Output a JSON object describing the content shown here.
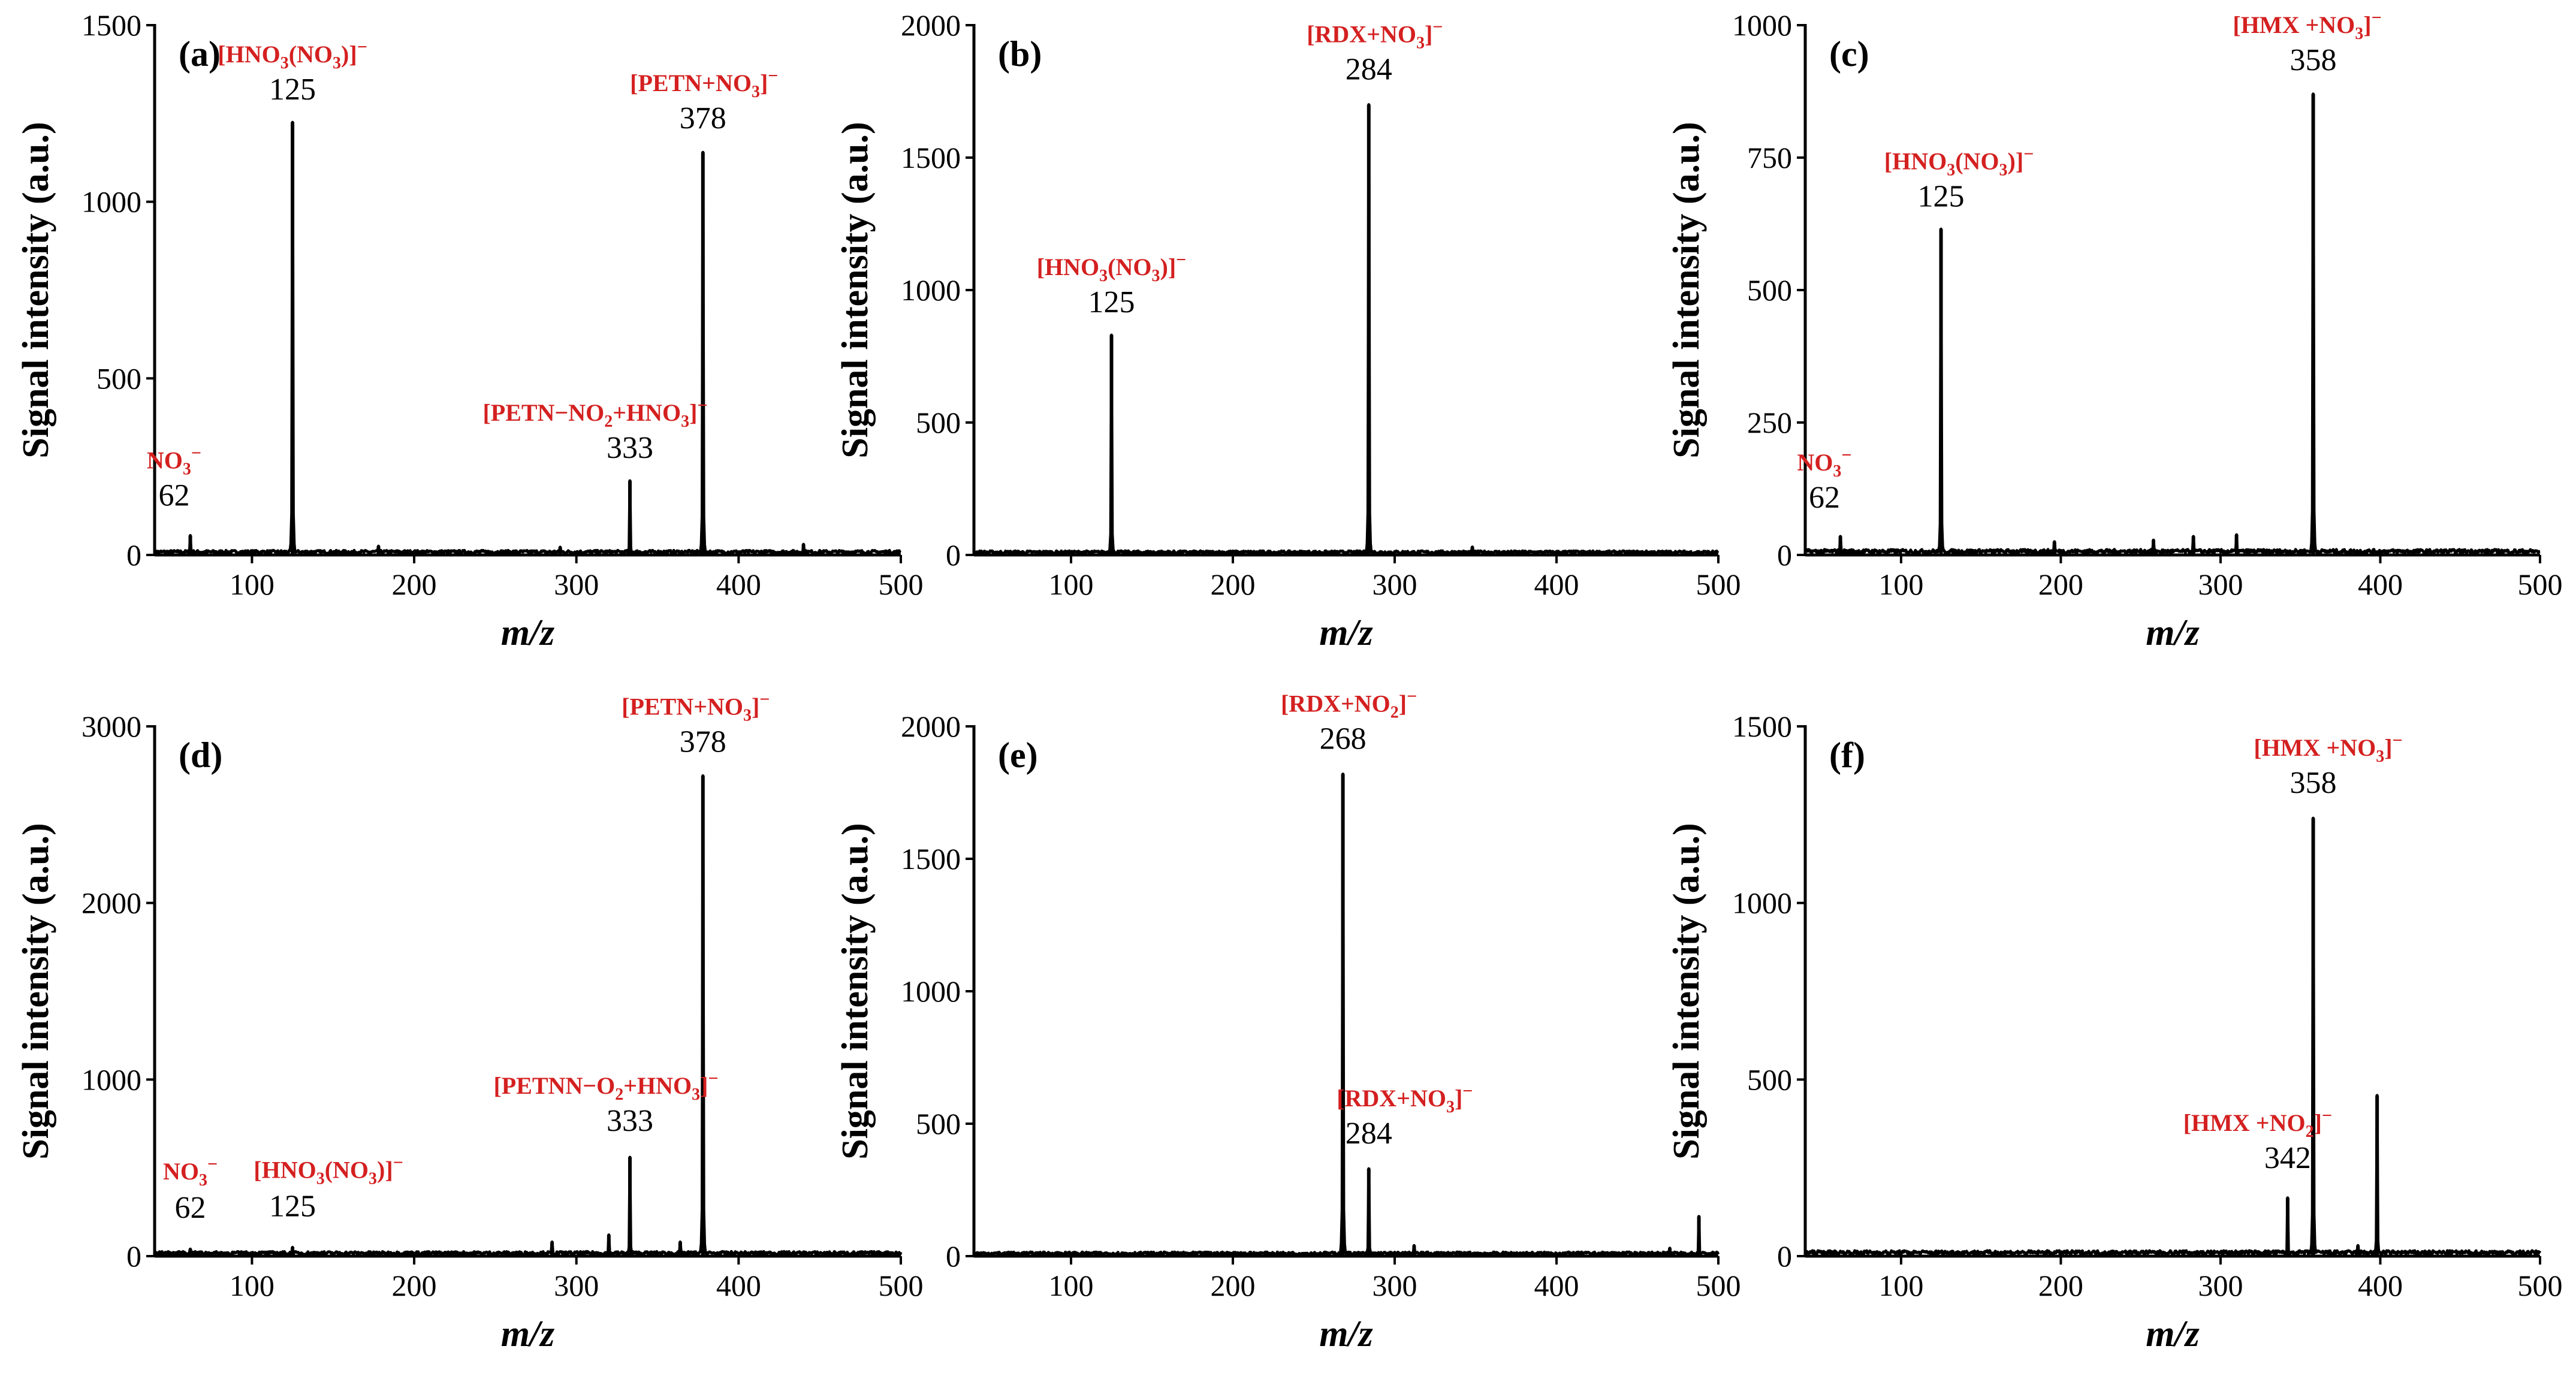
{
  "colors": {
    "annotation": "#d42020",
    "line": "#000000"
  },
  "chart_data": [
    {
      "type": "line",
      "panel": "(a)",
      "xlabel": "m/z",
      "ylabel": "Signal intensity (a.u.)",
      "xlim": [
        40,
        500
      ],
      "ylim": [
        0,
        1500
      ],
      "xticks": [
        100,
        200,
        300,
        400,
        500
      ],
      "yticks": [
        0,
        500,
        1000,
        1500
      ],
      "baseline": 10,
      "peaks": [
        {
          "x": 62,
          "y": 55
        },
        {
          "x": 125,
          "y": 1225
        },
        {
          "x": 178,
          "y": 25
        },
        {
          "x": 290,
          "y": 22
        },
        {
          "x": 333,
          "y": 210
        },
        {
          "x": 378,
          "y": 1140
        },
        {
          "x": 440,
          "y": 30
        }
      ],
      "annotations": [
        {
          "mz": "62",
          "ion": [
            [
              "NO"
            ],
            [
              "3",
              "sub"
            ],
            [
              "−",
              "sup"
            ]
          ]
        },
        {
          "mz": "125",
          "ion": [
            [
              "[HNO"
            ],
            [
              "3",
              "sub"
            ],
            [
              "(NO"
            ],
            [
              "3",
              "sub"
            ],
            [
              ")]"
            ],
            [
              "−",
              "sup"
            ]
          ]
        },
        {
          "mz": "333",
          "ion": [
            [
              "[PETN−NO"
            ],
            [
              "2",
              "sub"
            ],
            [
              "+HNO"
            ],
            [
              "3",
              "sub"
            ],
            [
              "]"
            ],
            [
              "−",
              "sup"
            ]
          ]
        },
        {
          "mz": "378",
          "ion": [
            [
              "[PETN+NO"
            ],
            [
              "3",
              "sub"
            ],
            [
              "]"
            ],
            [
              "−",
              "sup"
            ]
          ]
        }
      ]
    },
    {
      "type": "line",
      "panel": "(b)",
      "xlabel": "m/z",
      "ylabel": "Signal intensity (a.u.)",
      "xlim": [
        40,
        500
      ],
      "ylim": [
        0,
        2000
      ],
      "xticks": [
        100,
        200,
        300,
        400,
        500
      ],
      "yticks": [
        0,
        500,
        1000,
        1500,
        2000
      ],
      "baseline": 12,
      "peaks": [
        {
          "x": 125,
          "y": 830
        },
        {
          "x": 284,
          "y": 1700
        },
        {
          "x": 348,
          "y": 30
        }
      ],
      "annotations": [
        {
          "mz": "125",
          "ion": [
            [
              "[HNO"
            ],
            [
              "3",
              "sub"
            ],
            [
              "(NO"
            ],
            [
              "3",
              "sub"
            ],
            [
              ")]"
            ],
            [
              "−",
              "sup"
            ]
          ]
        },
        {
          "mz": "284",
          "ion": [
            [
              "[RDX+NO"
            ],
            [
              "3",
              "sub"
            ],
            [
              "]"
            ],
            [
              "−",
              "sup"
            ]
          ]
        }
      ]
    },
    {
      "type": "line",
      "panel": "(c)",
      "xlabel": "m/z",
      "ylabel": "Signal intensity (a.u.)",
      "xlim": [
        40,
        500
      ],
      "ylim": [
        0,
        1000
      ],
      "xticks": [
        100,
        200,
        300,
        400,
        500
      ],
      "yticks": [
        0,
        250,
        500,
        750,
        1000
      ],
      "baseline": 8,
      "peaks": [
        {
          "x": 62,
          "y": 35
        },
        {
          "x": 125,
          "y": 615
        },
        {
          "x": 196,
          "y": 25
        },
        {
          "x": 258,
          "y": 28
        },
        {
          "x": 283,
          "y": 35
        },
        {
          "x": 310,
          "y": 38
        },
        {
          "x": 358,
          "y": 870
        }
      ],
      "annotations": [
        {
          "mz": "62",
          "ion": [
            [
              "NO"
            ],
            [
              "3",
              "sub"
            ],
            [
              "−",
              "sup"
            ]
          ]
        },
        {
          "mz": "125",
          "ion": [
            [
              "[HNO"
            ],
            [
              "3",
              "sub"
            ],
            [
              "(NO"
            ],
            [
              "3",
              "sub"
            ],
            [
              ")]"
            ],
            [
              "−",
              "sup"
            ]
          ]
        },
        {
          "mz": "358",
          "ion": [
            [
              "[HMX +NO"
            ],
            [
              "3",
              "sub"
            ],
            [
              "]"
            ],
            [
              "−",
              "sup"
            ]
          ]
        }
      ]
    },
    {
      "type": "line",
      "panel": "(d)",
      "xlabel": "m/z",
      "ylabel": "Signal intensity (a.u.)",
      "xlim": [
        40,
        500
      ],
      "ylim": [
        0,
        3000
      ],
      "xticks": [
        100,
        200,
        300,
        400,
        500
      ],
      "yticks": [
        0,
        1000,
        2000,
        3000
      ],
      "baseline": 20,
      "peaks": [
        {
          "x": 62,
          "y": 40
        },
        {
          "x": 125,
          "y": 50
        },
        {
          "x": 285,
          "y": 80
        },
        {
          "x": 320,
          "y": 120
        },
        {
          "x": 333,
          "y": 560
        },
        {
          "x": 364,
          "y": 80
        },
        {
          "x": 378,
          "y": 2720
        }
      ],
      "annotations": [
        {
          "mz": "62",
          "ion": [
            [
              "NO"
            ],
            [
              "3",
              "sub"
            ],
            [
              "−",
              "sup"
            ]
          ]
        },
        {
          "mz": "125",
          "ion": [
            [
              "[HNO"
            ],
            [
              "3",
              "sub"
            ],
            [
              "(NO"
            ],
            [
              "3",
              "sub"
            ],
            [
              ")]"
            ],
            [
              "−",
              "sup"
            ]
          ]
        },
        {
          "mz": "333",
          "ion": [
            [
              "[PETNN−O"
            ],
            [
              "2",
              "sub"
            ],
            [
              "+HNO"
            ],
            [
              "3",
              "sub"
            ],
            [
              "]"
            ],
            [
              "−",
              "sup"
            ]
          ]
        },
        {
          "mz": "378",
          "ion": [
            [
              "[PETN+NO"
            ],
            [
              "3",
              "sub"
            ],
            [
              "]"
            ],
            [
              "−",
              "sup"
            ]
          ]
        }
      ]
    },
    {
      "type": "line",
      "panel": "(e)",
      "xlabel": "m/z",
      "ylabel": "Signal intensity (a.u.)",
      "xlim": [
        40,
        500
      ],
      "ylim": [
        0,
        2000
      ],
      "xticks": [
        100,
        200,
        300,
        400,
        500
      ],
      "yticks": [
        0,
        500,
        1000,
        1500,
        2000
      ],
      "baseline": 12,
      "peaks": [
        {
          "x": 268,
          "y": 1820
        },
        {
          "x": 284,
          "y": 330
        },
        {
          "x": 312,
          "y": 40
        },
        {
          "x": 470,
          "y": 30
        },
        {
          "x": 488,
          "y": 150
        }
      ],
      "annotations": [
        {
          "mz": "268",
          "ion": [
            [
              "[RDX+NO"
            ],
            [
              "2",
              "sub"
            ],
            [
              "]"
            ],
            [
              "−",
              "sup"
            ]
          ]
        },
        {
          "mz": "284",
          "ion": [
            [
              "[RDX+NO"
            ],
            [
              "3",
              "sub"
            ],
            [
              "]"
            ],
            [
              "−",
              "sup"
            ]
          ]
        }
      ]
    },
    {
      "type": "line",
      "panel": "(f)",
      "xlabel": "m/z",
      "ylabel": "Signal intensity (a.u.)",
      "xlim": [
        40,
        500
      ],
      "ylim": [
        0,
        1500
      ],
      "xticks": [
        100,
        200,
        300,
        400,
        500
      ],
      "yticks": [
        0,
        500,
        1000,
        1500
      ],
      "baseline": 12,
      "peaks": [
        {
          "x": 342,
          "y": 165
        },
        {
          "x": 358,
          "y": 1240
        },
        {
          "x": 386,
          "y": 30
        },
        {
          "x": 398,
          "y": 455
        }
      ],
      "annotations": [
        {
          "mz": "342",
          "ion": [
            [
              "[HMX +NO"
            ],
            [
              "2",
              "sub"
            ],
            [
              "]"
            ],
            [
              "−",
              "sup"
            ]
          ]
        },
        {
          "mz": "358",
          "ion": [
            [
              "[HMX +NO"
            ],
            [
              "3",
              "sub"
            ],
            [
              "]"
            ],
            [
              "−",
              "sup"
            ]
          ]
        }
      ]
    }
  ]
}
